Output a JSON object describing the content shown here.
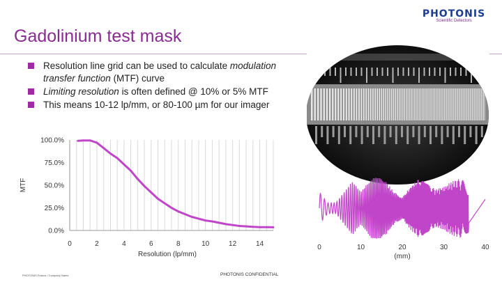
{
  "logo": {
    "name": "PHOTONIS",
    "tagline": "Scientific Detectors"
  },
  "slide": {
    "title": "Gadolinium test mask",
    "bullets": [
      {
        "parts": [
          {
            "text": "Resolution line grid can be used to calculate ",
            "italic": false
          },
          {
            "text": "modulation transfer function",
            "italic": true
          },
          {
            "text": " (MTF) curve",
            "italic": false
          }
        ]
      },
      {
        "parts": [
          {
            "text": "Limiting resolution",
            "italic": true
          },
          {
            "text": " is often defined @ 10% or 5% MTF",
            "italic": false
          }
        ]
      },
      {
        "parts": [
          {
            "text": "This means 10-12 lp/mm, or 80-100 µm for our imager",
            "italic": false
          }
        ]
      }
    ]
  },
  "footer": {
    "left": "PHOTONIS France / Company Name",
    "center": "PHOTONIS CONFIDENTIAL"
  },
  "colors": {
    "accent": "#8a2a93",
    "curve": "#c045c8",
    "bullet": "#a02aa3"
  },
  "chart_data": [
    {
      "type": "line",
      "title": "",
      "xlabel": "Resolution (lp/mm)",
      "ylabel": "MTF",
      "xlim": [
        0,
        15
      ],
      "ylim": [
        0,
        100
      ],
      "xticks": [
        0,
        2,
        4,
        6,
        8,
        10,
        12,
        14
      ],
      "yticks": [
        0,
        25,
        50,
        75,
        100
      ],
      "ytick_labels": [
        "0.0%",
        "25.0%",
        "50.0%",
        "75.0%",
        "100.0%"
      ],
      "grid": "vertical",
      "series": [
        {
          "x": [
            0.6,
            1.0,
            1.5,
            2.0,
            2.5,
            3.0,
            3.5,
            4.0,
            4.5,
            5.0,
            5.5,
            6.0,
            6.5,
            7.0,
            7.5,
            8.0,
            8.5,
            9.0,
            9.5,
            10.0,
            10.5,
            11.0,
            11.5,
            12.0,
            12.5,
            13.0,
            13.5,
            14.0,
            14.5,
            15.0
          ],
          "y": [
            99,
            99.5,
            99.5,
            97,
            91,
            85,
            80,
            73,
            66,
            57,
            49,
            42,
            35,
            30,
            25,
            21,
            18,
            15,
            13,
            11,
            10,
            8.5,
            7,
            6,
            5,
            4.5,
            4,
            3.7,
            3.6,
            3.5
          ]
        }
      ]
    },
    {
      "type": "line",
      "xlabel": "(mm)",
      "xlim": [
        0,
        40
      ],
      "xticks": [
        0,
        10,
        20,
        30,
        40
      ],
      "xtick_labels": [
        "0",
        "10",
        "20",
        "30",
        "40"
      ],
      "series": [
        {
          "x": [
            0,
            2,
            4,
            6,
            8,
            10,
            12,
            14,
            16,
            18,
            20,
            22,
            24,
            26,
            28,
            30,
            32,
            34,
            36,
            38,
            40
          ],
          "y": [
            0.3,
            0.1,
            0.1,
            0.3,
            0.5,
            0.3,
            0.5,
            0.7,
            0.5,
            0.3,
            0.2,
            0.4,
            0.55,
            0.45,
            0.35,
            0.4,
            0.5,
            0.55,
            0.45,
            0.35,
            0.85
          ]
        }
      ]
    }
  ]
}
